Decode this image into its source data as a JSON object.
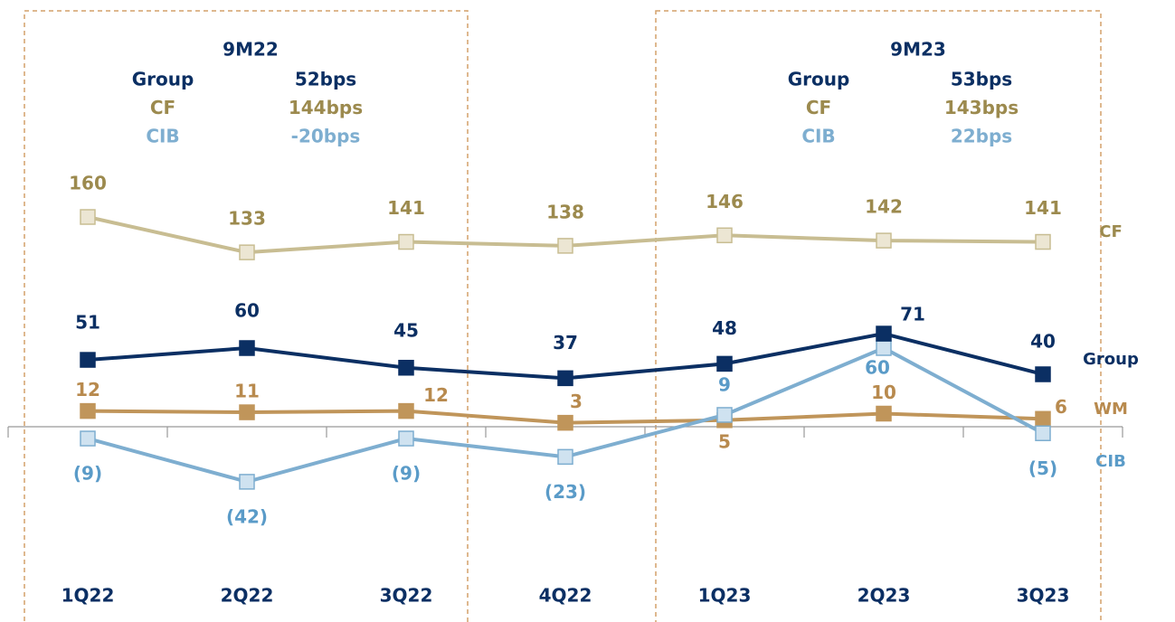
{
  "chart_data": {
    "type": "line",
    "categories": [
      "1Q22",
      "2Q22",
      "3Q22",
      "4Q22",
      "1Q23",
      "2Q23",
      "3Q23"
    ],
    "series": [
      {
        "name": "CF",
        "color": "#c8bd92",
        "values": [
          160,
          133,
          141,
          138,
          146,
          142,
          141
        ]
      },
      {
        "name": "Group",
        "color": "#0b2f63",
        "values": [
          51,
          60,
          45,
          37,
          48,
          71,
          40
        ]
      },
      {
        "name": "WM",
        "color": "#c0955a",
        "values": [
          12,
          11,
          12,
          3,
          5,
          10,
          6
        ]
      },
      {
        "name": "CIB",
        "color": "#7eaed0",
        "values": [
          -9,
          -42,
          -9,
          -23,
          9,
          60,
          -5
        ],
        "value_labels": [
          "(9)",
          "(42)",
          "(9)",
          "(23)",
          "9",
          "60",
          "(5)"
        ]
      }
    ],
    "ylim": [
      -60,
      200
    ],
    "annotations": [
      {
        "title": "9M22",
        "rows": [
          {
            "label": "Group",
            "value": "52bps"
          },
          {
            "label": "CF",
            "value": "144bps"
          },
          {
            "label": "CIB",
            "value": "-20bps"
          }
        ]
      },
      {
        "title": "9M23",
        "rows": [
          {
            "label": "Group",
            "value": "53bps"
          },
          {
            "label": "CF",
            "value": "143bps"
          },
          {
            "label": "CIB",
            "value": "22bps"
          }
        ]
      }
    ]
  }
}
